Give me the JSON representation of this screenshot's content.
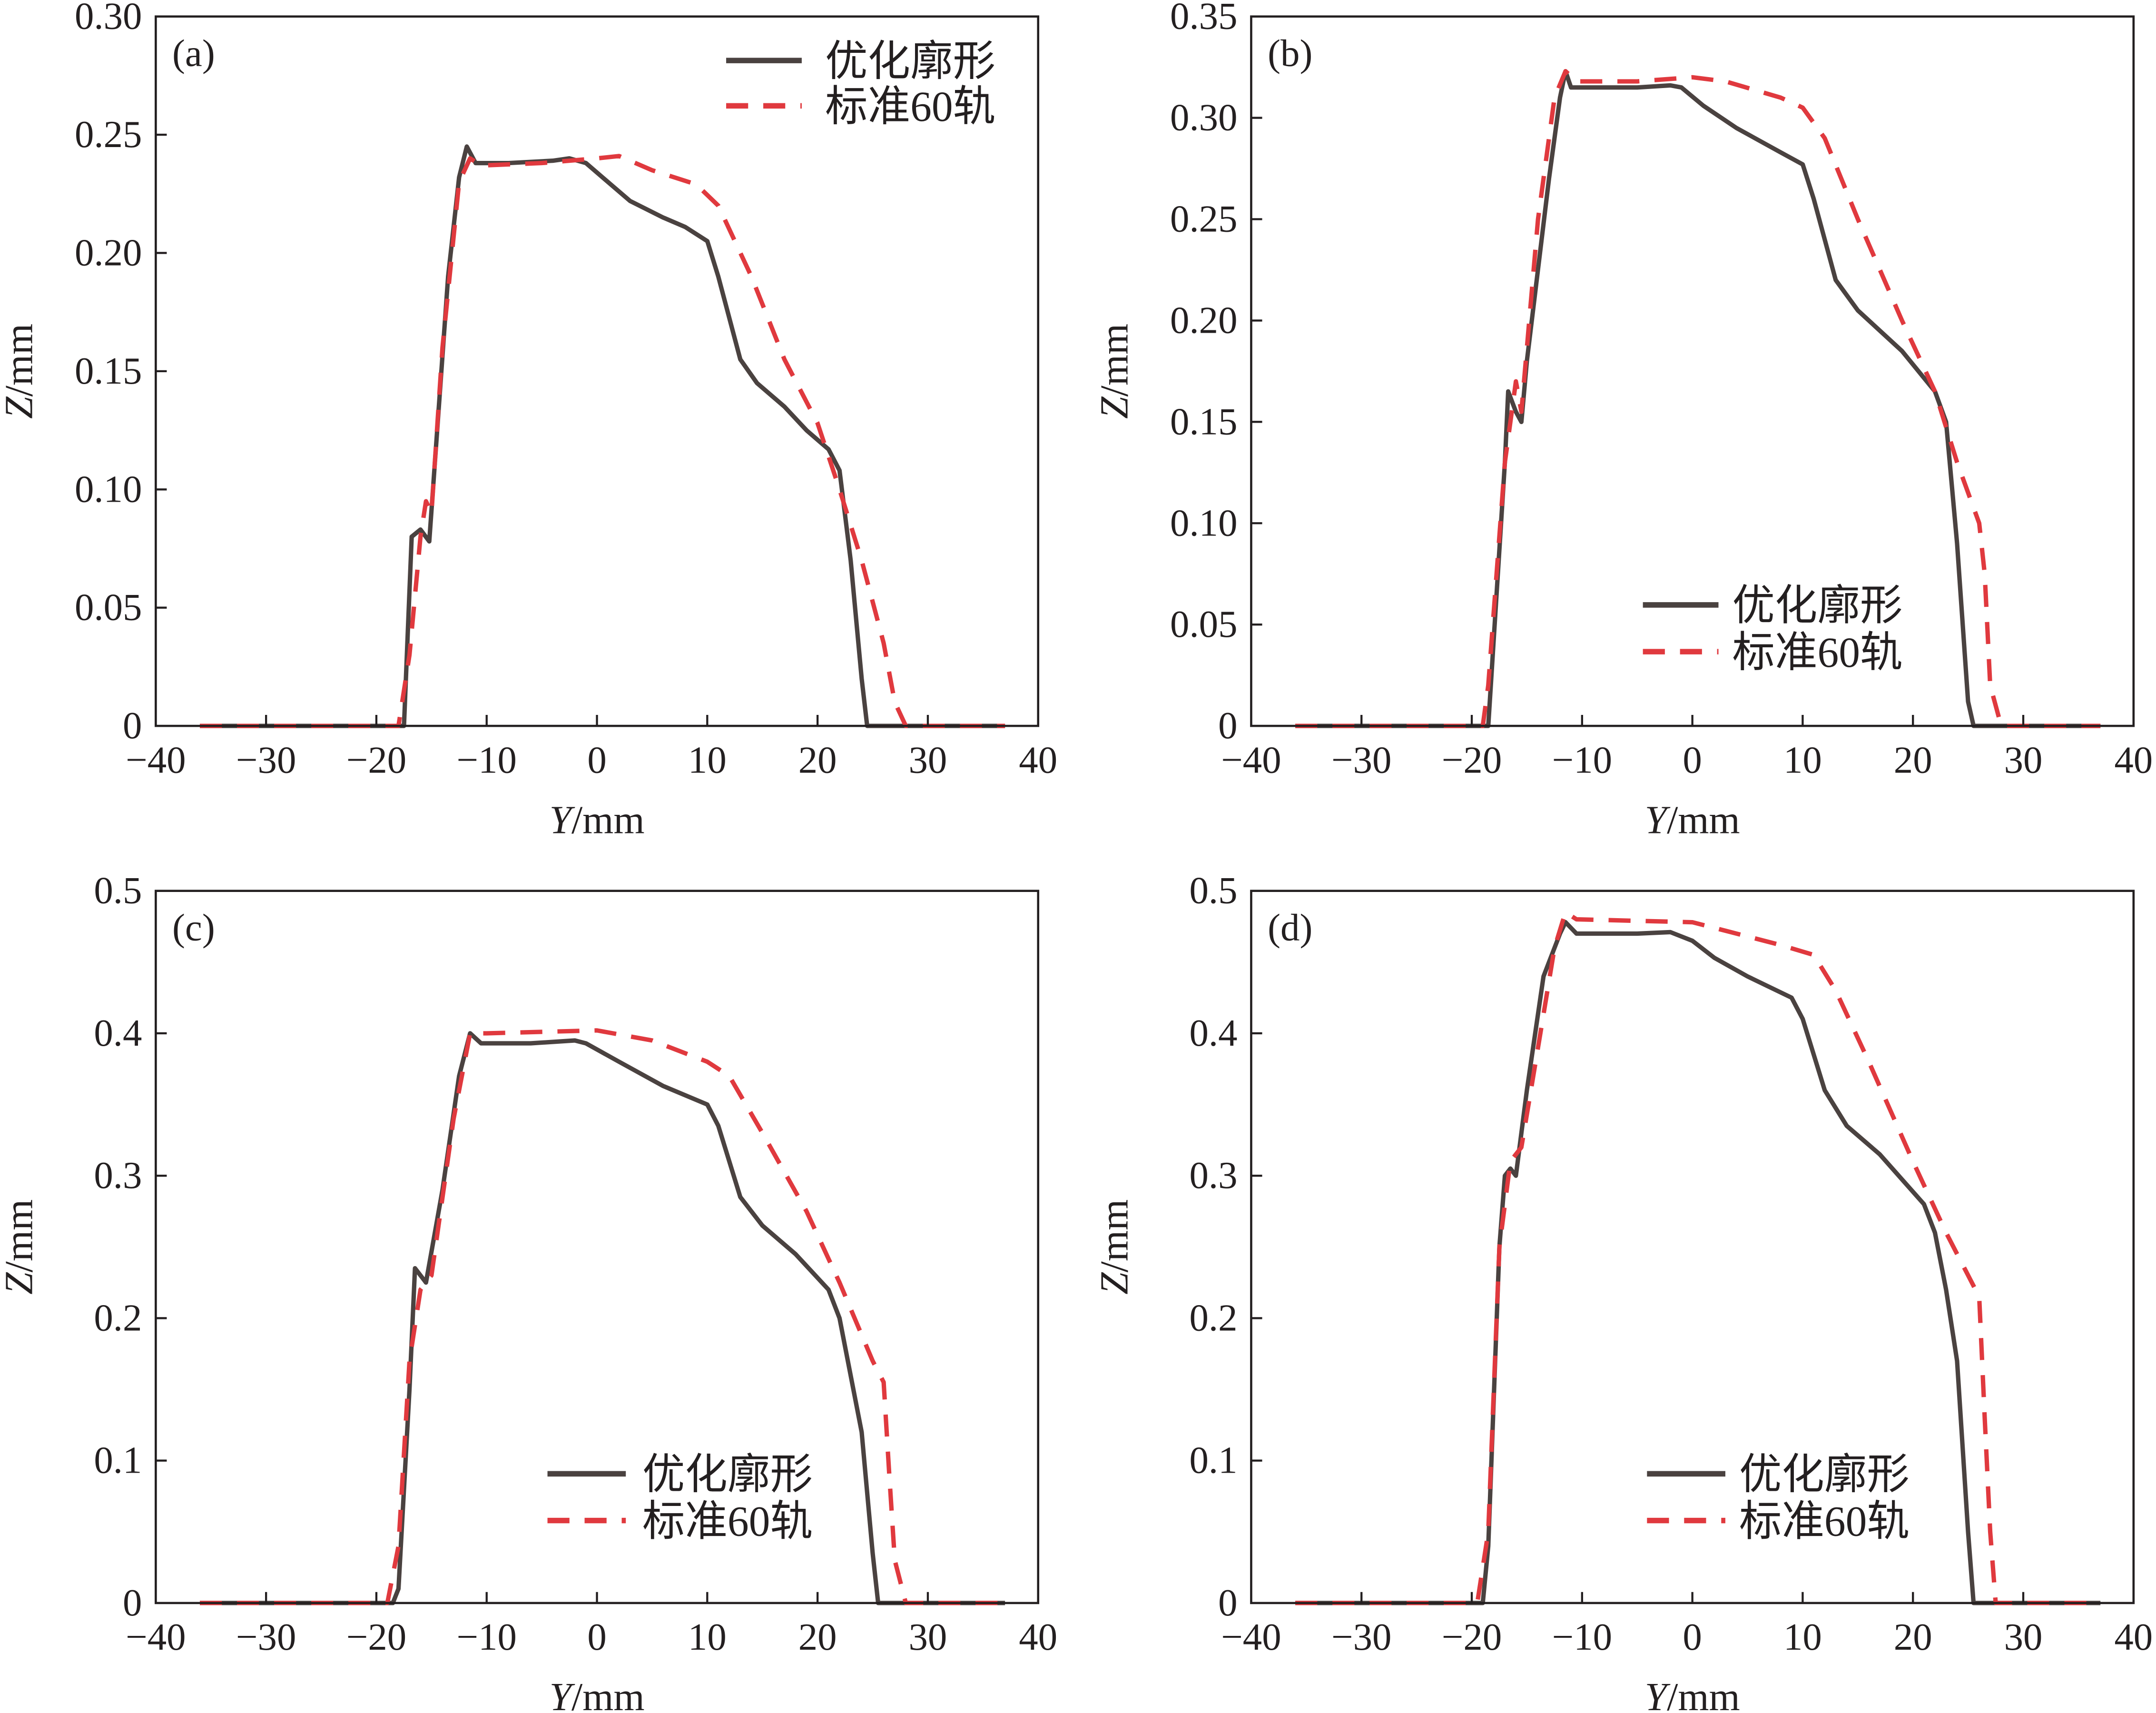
{
  "colors": {
    "optimized": "#4a4240",
    "standard": "#e0393e",
    "axis": "#231f20"
  },
  "chart_data": [
    {
      "type": "line",
      "panel_label": "(a)",
      "xlabel_italic": "Y",
      "xlabel_unit": "/mm",
      "ylabel_italic": "Z",
      "ylabel_unit": "/mm",
      "xlim": [
        -40,
        40
      ],
      "ylim": [
        0,
        0.3
      ],
      "grid": false,
      "legend_position": "top-right",
      "xticks": [
        "−40",
        "−30",
        "−20",
        "−10",
        "0",
        "10",
        "20",
        "30",
        "40"
      ],
      "yticks": [
        "0",
        "0.05",
        "0.10",
        "0.15",
        "0.20",
        "0.25",
        "0.30"
      ],
      "series": [
        {
          "name": "优化廓形",
          "style": "solid",
          "points": [
            [
              -36,
              0
            ],
            [
              -17.5,
              0
            ],
            [
              -16.8,
              0.08
            ],
            [
              -16,
              0.083
            ],
            [
              -15.2,
              0.078
            ],
            [
              -13.5,
              0.19
            ],
            [
              -12.5,
              0.232
            ],
            [
              -11.8,
              0.245
            ],
            [
              -11,
              0.238
            ],
            [
              -8,
              0.238
            ],
            [
              -4,
              0.239
            ],
            [
              -2.5,
              0.24
            ],
            [
              -1,
              0.238
            ],
            [
              1,
              0.23
            ],
            [
              3,
              0.222
            ],
            [
              6,
              0.215
            ],
            [
              8,
              0.211
            ],
            [
              10,
              0.205
            ],
            [
              11,
              0.19
            ],
            [
              13,
              0.155
            ],
            [
              14.5,
              0.145
            ],
            [
              17,
              0.135
            ],
            [
              19,
              0.125
            ],
            [
              21,
              0.117
            ],
            [
              22,
              0.108
            ],
            [
              23,
              0.07
            ],
            [
              24,
              0.02
            ],
            [
              24.5,
              0
            ],
            [
              37,
              0
            ]
          ]
        },
        {
          "name": "标准60轨",
          "style": "dashed",
          "points": [
            [
              -36,
              0
            ],
            [
              -18,
              0
            ],
            [
              -17,
              0.03
            ],
            [
              -16,
              0.08
            ],
            [
              -15.5,
              0.095
            ],
            [
              -15,
              0.09
            ],
            [
              -14,
              0.16
            ],
            [
              -12.5,
              0.23
            ],
            [
              -11.5,
              0.24
            ],
            [
              -10.5,
              0.237
            ],
            [
              -5,
              0.238
            ],
            [
              0,
              0.24
            ],
            [
              2,
              0.241
            ],
            [
              5,
              0.235
            ],
            [
              9,
              0.229
            ],
            [
              11,
              0.22
            ],
            [
              14,
              0.19
            ],
            [
              17,
              0.155
            ],
            [
              20,
              0.128
            ],
            [
              22,
              0.1
            ],
            [
              24,
              0.07
            ],
            [
              26,
              0.035
            ],
            [
              27,
              0.01
            ],
            [
              28,
              0
            ],
            [
              37,
              0
            ]
          ]
        }
      ]
    },
    {
      "type": "line",
      "panel_label": "(b)",
      "xlabel_italic": "Y",
      "xlabel_unit": "/mm",
      "ylabel_italic": "Z",
      "ylabel_unit": "/mm",
      "xlim": [
        -40,
        40
      ],
      "ylim": [
        0,
        0.35
      ],
      "grid": false,
      "legend_position": "bottom-right",
      "xticks": [
        "−40",
        "−30",
        "−20",
        "−10",
        "0",
        "10",
        "20",
        "30",
        "40"
      ],
      "yticks": [
        "0",
        "0.05",
        "0.10",
        "0.15",
        "0.20",
        "0.25",
        "0.30",
        "0.35"
      ],
      "series": [
        {
          "name": "优化廓形",
          "style": "solid",
          "points": [
            [
              -36,
              0
            ],
            [
              -18.5,
              0
            ],
            [
              -17,
              0.13
            ],
            [
              -16.7,
              0.165
            ],
            [
              -16,
              0.155
            ],
            [
              -15.5,
              0.15
            ],
            [
              -15,
              0.18
            ],
            [
              -13,
              0.27
            ],
            [
              -12,
              0.31
            ],
            [
              -11.5,
              0.323
            ],
            [
              -11,
              0.315
            ],
            [
              -5,
              0.315
            ],
            [
              -2,
              0.316
            ],
            [
              -1,
              0.315
            ],
            [
              1,
              0.306
            ],
            [
              4,
              0.295
            ],
            [
              8,
              0.283
            ],
            [
              10,
              0.277
            ],
            [
              11,
              0.26
            ],
            [
              12,
              0.24
            ],
            [
              13,
              0.22
            ],
            [
              15,
              0.205
            ],
            [
              19,
              0.185
            ],
            [
              22,
              0.165
            ],
            [
              23,
              0.15
            ],
            [
              24,
              0.09
            ],
            [
              25,
              0.012
            ],
            [
              25.5,
              0
            ],
            [
              37,
              0
            ]
          ]
        },
        {
          "name": "标准60轨",
          "style": "dashed",
          "points": [
            [
              -36,
              0
            ],
            [
              -19,
              0
            ],
            [
              -18.5,
              0.02
            ],
            [
              -17,
              0.13
            ],
            [
              -16,
              0.17
            ],
            [
              -15.5,
              0.155
            ],
            [
              -14,
              0.25
            ],
            [
              -12.5,
              0.31
            ],
            [
              -11.5,
              0.323
            ],
            [
              -10.5,
              0.318
            ],
            [
              -5,
              0.318
            ],
            [
              0,
              0.32
            ],
            [
              3,
              0.318
            ],
            [
              8,
              0.31
            ],
            [
              10,
              0.305
            ],
            [
              12,
              0.29
            ],
            [
              15,
              0.25
            ],
            [
              19,
              0.2
            ],
            [
              22,
              0.165
            ],
            [
              24,
              0.13
            ],
            [
              26,
              0.1
            ],
            [
              26.5,
              0.075
            ],
            [
              27,
              0.02
            ],
            [
              28,
              0
            ],
            [
              37,
              0
            ]
          ]
        }
      ]
    },
    {
      "type": "line",
      "panel_label": "(c)",
      "xlabel_italic": "Y",
      "xlabel_unit": "/mm",
      "ylabel_italic": "Z",
      "ylabel_unit": "/mm",
      "xlim": [
        -40,
        40
      ],
      "ylim": [
        0,
        0.5
      ],
      "grid": false,
      "legend_position": "bottom-right",
      "xticks": [
        "−40",
        "−30",
        "−20",
        "−10",
        "0",
        "10",
        "20",
        "30",
        "40"
      ],
      "yticks": [
        "0",
        "0.1",
        "0.2",
        "0.3",
        "0.4",
        "0.5"
      ],
      "series": [
        {
          "name": "优化廓形",
          "style": "solid",
          "points": [
            [
              -36,
              0
            ],
            [
              -18.5,
              0
            ],
            [
              -18,
              0.01
            ],
            [
              -17,
              0.15
            ],
            [
              -16.5,
              0.235
            ],
            [
              -15.5,
              0.225
            ],
            [
              -14,
              0.29
            ],
            [
              -12.5,
              0.37
            ],
            [
              -11.5,
              0.4
            ],
            [
              -10.5,
              0.393
            ],
            [
              -6,
              0.393
            ],
            [
              -2,
              0.395
            ],
            [
              -1,
              0.393
            ],
            [
              2,
              0.38
            ],
            [
              6,
              0.363
            ],
            [
              10,
              0.35
            ],
            [
              11,
              0.335
            ],
            [
              13,
              0.285
            ],
            [
              15,
              0.265
            ],
            [
              18,
              0.245
            ],
            [
              21,
              0.22
            ],
            [
              22,
              0.2
            ],
            [
              24,
              0.12
            ],
            [
              25,
              0.035
            ],
            [
              25.5,
              0
            ],
            [
              37,
              0
            ]
          ]
        },
        {
          "name": "标准60轨",
          "style": "dashed",
          "points": [
            [
              -36,
              0
            ],
            [
              -19,
              0
            ],
            [
              -18,
              0.04
            ],
            [
              -17,
              0.17
            ],
            [
              -16,
              0.22
            ],
            [
              -15,
              0.23
            ],
            [
              -13,
              0.34
            ],
            [
              -11.5,
              0.4
            ],
            [
              -10,
              0.4
            ],
            [
              0,
              0.402
            ],
            [
              5,
              0.395
            ],
            [
              10,
              0.38
            ],
            [
              12,
              0.37
            ],
            [
              15,
              0.33
            ],
            [
              19,
              0.275
            ],
            [
              22,
              0.225
            ],
            [
              25,
              0.17
            ],
            [
              26,
              0.155
            ],
            [
              26.5,
              0.09
            ],
            [
              27,
              0.03
            ],
            [
              28,
              0
            ],
            [
              37,
              0
            ]
          ]
        }
      ]
    },
    {
      "type": "line",
      "panel_label": "(d)",
      "xlabel_italic": "Y",
      "xlabel_unit": "/mm",
      "ylabel_italic": "Z",
      "ylabel_unit": "/mm",
      "xlim": [
        -40,
        40
      ],
      "ylim": [
        0,
        0.5
      ],
      "grid": false,
      "legend_position": "bottom-right",
      "xticks": [
        "−40",
        "−30",
        "−20",
        "−10",
        "0",
        "10",
        "20",
        "30",
        "40"
      ],
      "yticks": [
        "0",
        "0.1",
        "0.2",
        "0.3",
        "0.4",
        "0.5"
      ],
      "series": [
        {
          "name": "优化廓形",
          "style": "solid",
          "points": [
            [
              -36,
              0
            ],
            [
              -19,
              0
            ],
            [
              -18.5,
              0.04
            ],
            [
              -17.5,
              0.25
            ],
            [
              -17,
              0.3
            ],
            [
              -16.5,
              0.305
            ],
            [
              -16,
              0.3
            ],
            [
              -15,
              0.36
            ],
            [
              -13.5,
              0.44
            ],
            [
              -12,
              0.47
            ],
            [
              -11.5,
              0.478
            ],
            [
              -10.5,
              0.47
            ],
            [
              -5,
              0.47
            ],
            [
              -2,
              0.471
            ],
            [
              0,
              0.465
            ],
            [
              2,
              0.453
            ],
            [
              5,
              0.44
            ],
            [
              9,
              0.425
            ],
            [
              10,
              0.41
            ],
            [
              12,
              0.36
            ],
            [
              14,
              0.335
            ],
            [
              17,
              0.315
            ],
            [
              21,
              0.28
            ],
            [
              22,
              0.26
            ],
            [
              23,
              0.22
            ],
            [
              24,
              0.17
            ],
            [
              25,
              0.05
            ],
            [
              25.5,
              0
            ],
            [
              37,
              0
            ]
          ]
        },
        {
          "name": "标准60轨",
          "style": "dashed",
          "points": [
            [
              -36,
              0
            ],
            [
              -19.5,
              0
            ],
            [
              -18.5,
              0.05
            ],
            [
              -17.5,
              0.25
            ],
            [
              -16.5,
              0.31
            ],
            [
              -15.5,
              0.32
            ],
            [
              -14,
              0.39
            ],
            [
              -12.5,
              0.46
            ],
            [
              -11.5,
              0.485
            ],
            [
              -10.5,
              0.48
            ],
            [
              -5,
              0.479
            ],
            [
              0,
              0.478
            ],
            [
              3,
              0.472
            ],
            [
              8,
              0.462
            ],
            [
              11,
              0.455
            ],
            [
              13,
              0.43
            ],
            [
              16,
              0.38
            ],
            [
              20,
              0.31
            ],
            [
              23,
              0.26
            ],
            [
              26,
              0.215
            ],
            [
              26.5,
              0.13
            ],
            [
              27,
              0.05
            ],
            [
              27.5,
              0
            ],
            [
              37,
              0
            ]
          ]
        }
      ]
    }
  ]
}
